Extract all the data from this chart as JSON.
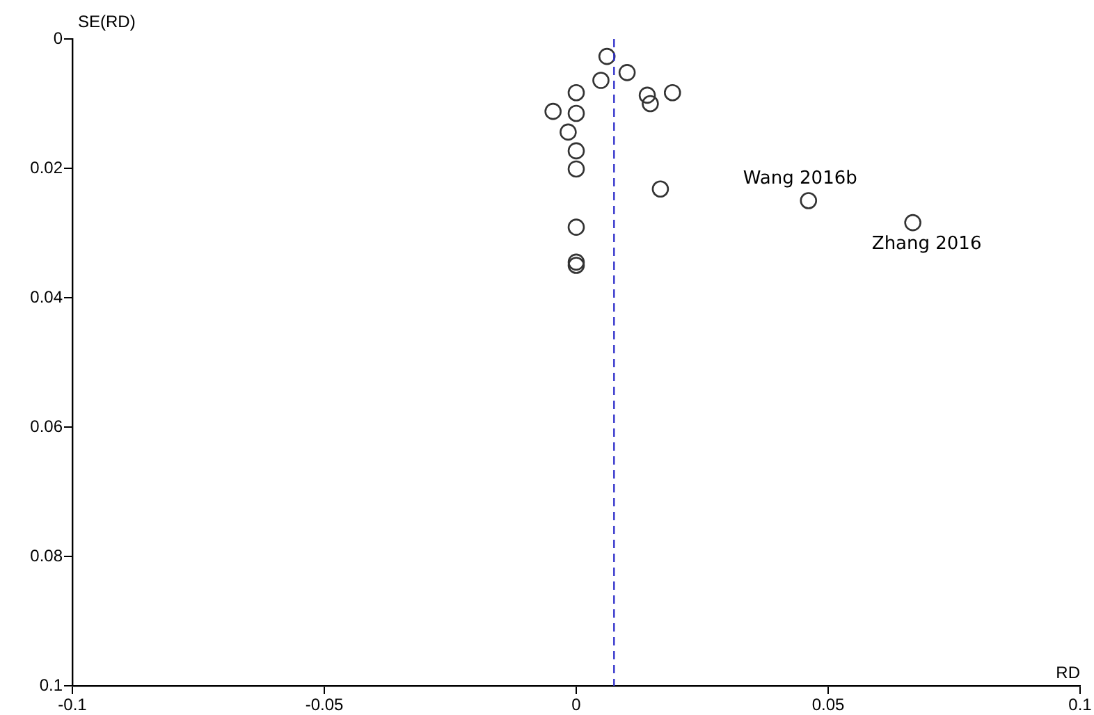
{
  "chart_data": {
    "type": "scatter",
    "xlabel": "RD",
    "ylabel": "SE(RD)",
    "x": [
      0.0061,
      0.0101,
      0.0049,
      0,
      0.0141,
      0.0147,
      0.0191,
      -0.0046,
      0,
      -0.0016,
      0,
      0,
      0.0167,
      0,
      0,
      0,
      0.0461,
      0.0668
    ],
    "series": [
      {
        "color": "#333333",
        "values": [
          0.0027,
          0.0052,
          0.0064,
          0.0083,
          0.0087,
          0.01,
          0.0083,
          0.0112,
          0.0115,
          0.0144,
          0.0173,
          0.0201,
          0.0232,
          0.0291,
          0.0345,
          0.035,
          0.025,
          0.0284
        ]
      }
    ],
    "xlim": [
      -0.1,
      0.1
    ],
    "xticks": [
      -0.1,
      -0.05,
      0,
      0.05,
      0.1
    ],
    "ylim": [
      0.1,
      0
    ],
    "yticks": [
      0,
      0.02,
      0.04,
      0.06,
      0.08,
      0.1
    ],
    "marker": "circle",
    "legend": false,
    "ref_lines": [
      {
        "axis": "x",
        "value": 0.0075,
        "color": "#3333cc",
        "line_style": "dashed"
      }
    ],
    "annotations": [
      {
        "text": "Wang 2016b",
        "x": 0.0461,
        "y": 0.025
      },
      {
        "text": "Zhang 2016",
        "x": 0.0668,
        "y": 0.0284
      }
    ]
  }
}
